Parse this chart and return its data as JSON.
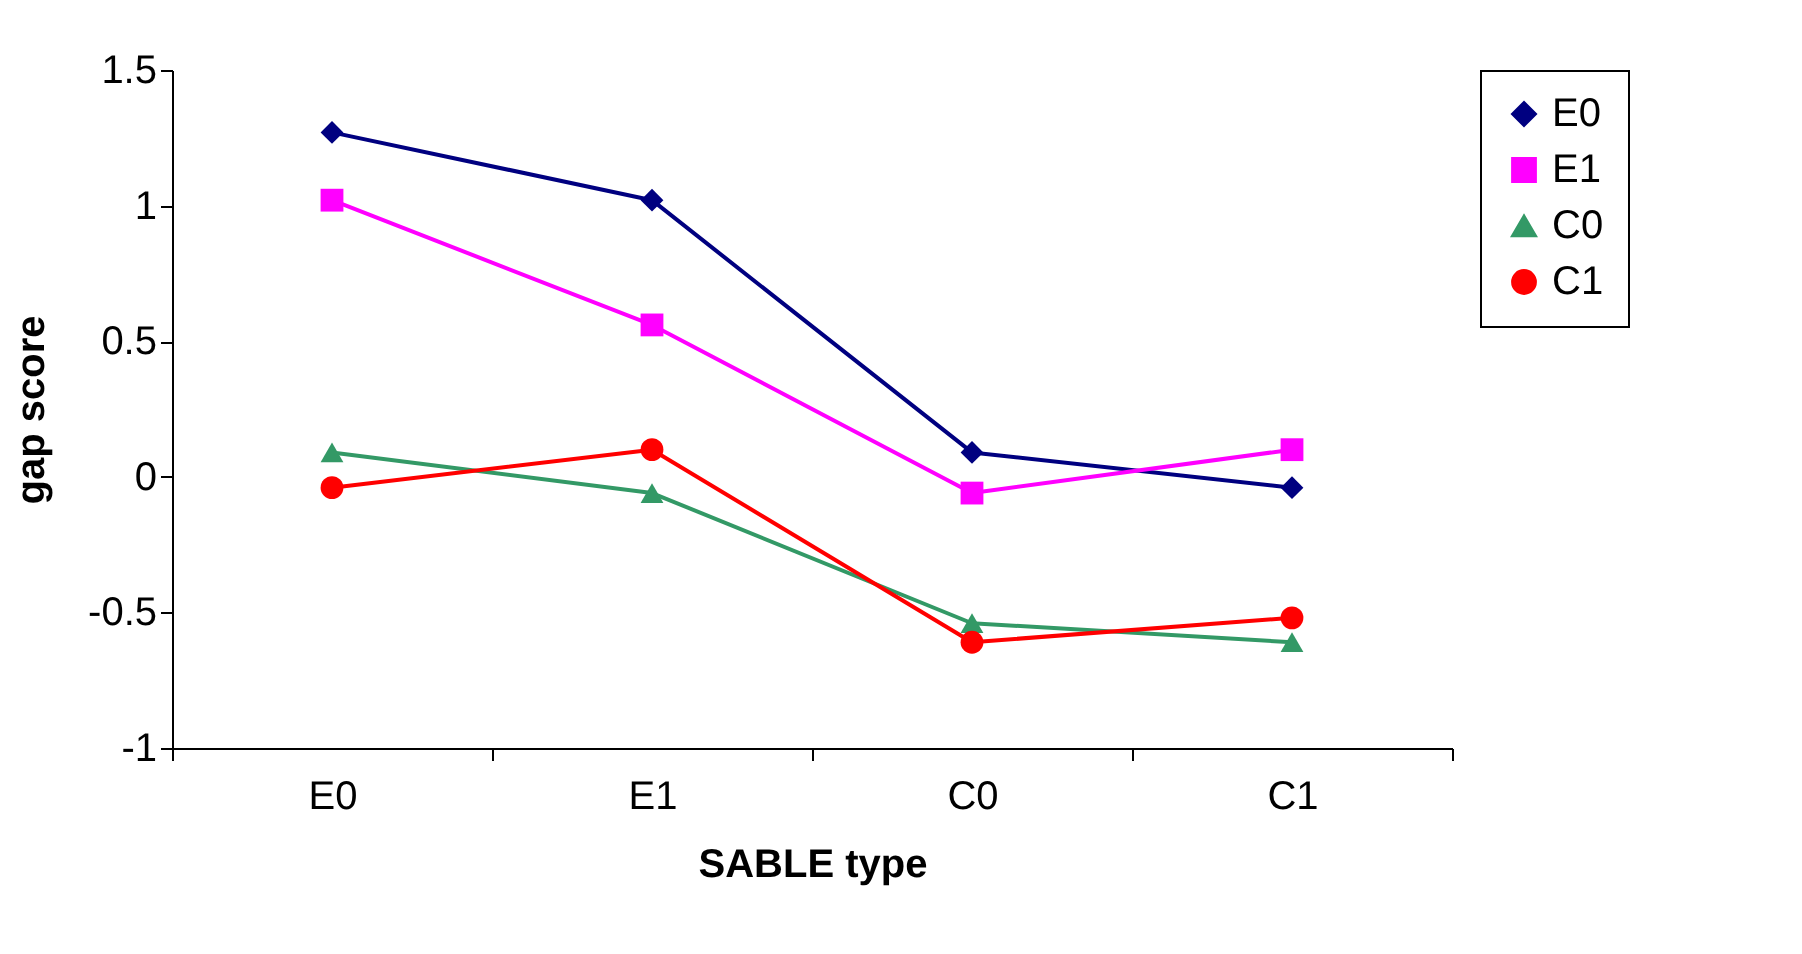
{
  "chart_data": {
    "type": "line",
    "xlabel": "SABLE type",
    "ylabel": "gap score",
    "categories": [
      "E0",
      "E1",
      "C0",
      "C1"
    ],
    "series": [
      {
        "name": "E0",
        "color": "#000080",
        "marker": "diamond",
        "values": [
          1.27,
          1.02,
          0.09,
          -0.04
        ]
      },
      {
        "name": "E1",
        "color": "#ff00ff",
        "marker": "square",
        "values": [
          1.02,
          0.56,
          -0.06,
          0.1
        ]
      },
      {
        "name": "C0",
        "color": "#339966",
        "marker": "triangle",
        "values": [
          0.09,
          -0.06,
          -0.54,
          -0.61
        ]
      },
      {
        "name": "C1",
        "color": "#ff0000",
        "marker": "circle",
        "values": [
          -0.04,
          0.1,
          -0.61,
          -0.52
        ]
      }
    ],
    "ylim": [
      -1,
      1.5
    ],
    "yticks": [
      -1,
      -0.5,
      0,
      0.5,
      1,
      1.5
    ],
    "grid": false,
    "legend": "right"
  }
}
